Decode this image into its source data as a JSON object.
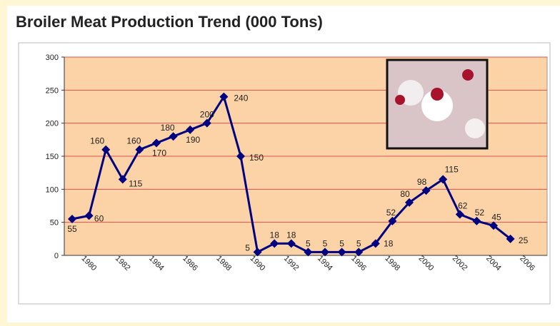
{
  "chart_data": {
    "type": "line",
    "title": "Broiler Meat Production Trend (000 Tons)",
    "categories": [
      "1980",
      null,
      "1982",
      null,
      "1984",
      null,
      "1986",
      null,
      "1988",
      null,
      "1990",
      null,
      "1992",
      null,
      "1994",
      null,
      "1996",
      null,
      "1998",
      null,
      "2000",
      null,
      "2002",
      null,
      "2004",
      null,
      "2006"
    ],
    "values": [
      55,
      60,
      160,
      115,
      160,
      170,
      180,
      190,
      200,
      240,
      150,
      5,
      18,
      18,
      5,
      5,
      5,
      5,
      18,
      52,
      80,
      98,
      115,
      62,
      52,
      45,
      25
    ],
    "color": "#000080",
    "ylim": [
      0,
      300
    ],
    "yticks": [
      0,
      50,
      100,
      150,
      200,
      250,
      300
    ],
    "grid": true
  }
}
